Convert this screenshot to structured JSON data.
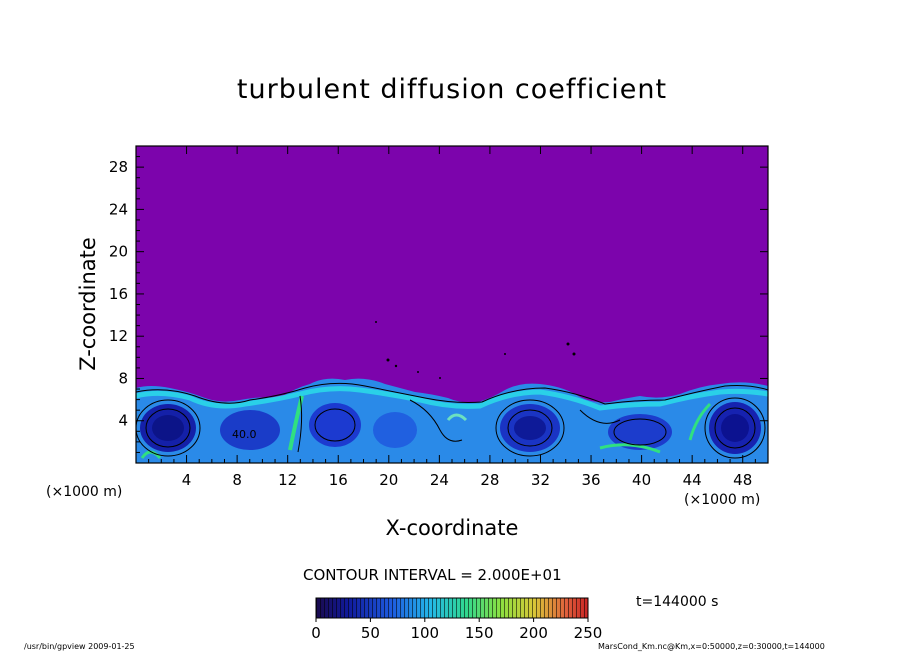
{
  "chart_data": {
    "type": "heatmap",
    "title": "turbulent diffusion coefficient",
    "xlabel": "X-coordinate",
    "ylabel": "Z-coordinate",
    "x_unit": "(×1000 m)",
    "z_unit": "(×1000 m)",
    "xlim": [
      0,
      50
    ],
    "ylim": [
      0,
      30
    ],
    "x_ticks": [
      4,
      8,
      12,
      16,
      20,
      24,
      28,
      32,
      36,
      40,
      44,
      48
    ],
    "y_ticks": [
      4,
      8,
      12,
      16,
      20,
      24,
      28
    ],
    "contour_interval_label": "CONTOUR INTERVAL = 2.000E+01",
    "contour_label": "40.0",
    "colorbar_ticks": [
      0,
      50,
      100,
      150,
      200,
      250
    ],
    "colorbar_range": [
      0,
      250
    ],
    "time_label": "t=144000 s",
    "colors": {
      "background_field": "#7c04ac",
      "low": "#0a1c8c",
      "mid": "#1e6ee8",
      "cyan": "#2ad0e8",
      "green": "#30e080"
    }
  },
  "footer": {
    "left": "/usr/bin/gpview   2009-01-25",
    "right": "MarsCond_Km.nc@Km,x=0:50000,z=0:30000,t=144000"
  }
}
